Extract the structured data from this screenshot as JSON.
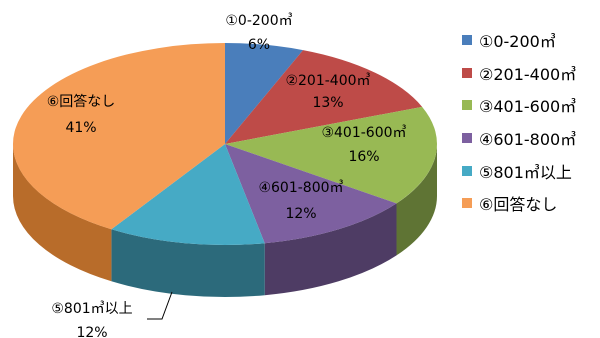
{
  "chart_data": {
    "type": "pie",
    "title": "",
    "categories": [
      "①0-200㎥",
      "②201-400㎥",
      "③401-600㎥",
      "④601-800㎥",
      "⑤801㎥以上",
      "⑥回答なし"
    ],
    "values": [
      6,
      13,
      16,
      12,
      12,
      41
    ],
    "value_labels": [
      "6%",
      "13%",
      "16%",
      "12%",
      "12%",
      "41%"
    ],
    "style": "3d",
    "legend_position": "right",
    "colors": [
      "#4a7ebb",
      "#be4b48",
      "#98b954",
      "#7d60a0",
      "#46aac5",
      "#f59d56"
    ],
    "side_colors": [
      "#2e4e75",
      "#772f2d",
      "#5f7434",
      "#4e3c64",
      "#2c6a7b",
      "#b86c2a"
    ]
  }
}
